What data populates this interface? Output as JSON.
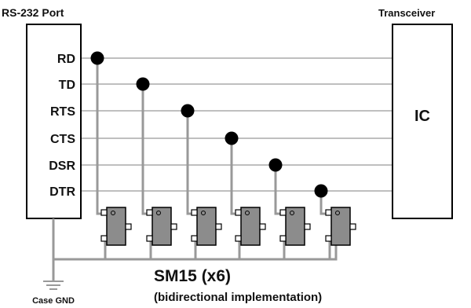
{
  "rs232_title": "RS-232 Port",
  "transceiver_title": "Transceiver",
  "ic_label": "IC",
  "signals": [
    "RD",
    "TD",
    "RTS",
    "CTS",
    "DSR",
    "DTR"
  ],
  "caption_main": "SM15 (x6)",
  "caption_sub": "(bidirectional implementation)",
  "ground_label": "Case GND",
  "colors": {
    "signal_line": "#999999",
    "device_body": "#8c8c8c",
    "node_dot": "#000000",
    "outline": "#000000"
  }
}
